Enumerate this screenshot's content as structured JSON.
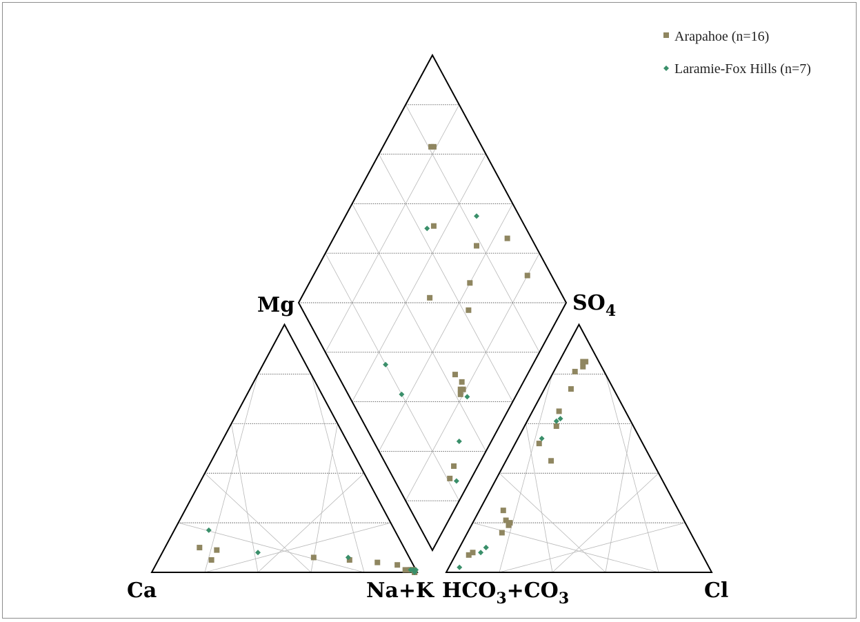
{
  "chart_data": {
    "type": "scatter",
    "subtype": "piper-diagram",
    "corner_labels": {
      "cation_left": "Ca",
      "cation_right": "Na+K",
      "anion_left_parts": [
        "HCO",
        "3",
        "+CO",
        "3"
      ],
      "anion_right": "Cl",
      "diamond_left": "Mg",
      "diamond_right_parts": [
        "SO",
        "4"
      ]
    },
    "grid": true,
    "grid_interval_percent": 20,
    "legend_placement": "top-right",
    "series": [
      {
        "name": "Arapahoe (n=16)",
        "marker": "square",
        "color": "#8f8660",
        "cation_points": [
          {
            "ca": 77,
            "na_k": 13,
            "mg": 10
          },
          {
            "ca": 71,
            "na_k": 20,
            "mg": 9
          },
          {
            "ca": 75,
            "na_k": 20,
            "mg": 5
          },
          {
            "ca": 36,
            "na_k": 58,
            "mg": 6
          },
          {
            "ca": 23,
            "na_k": 72,
            "mg": 5
          },
          {
            "ca": 13,
            "na_k": 83,
            "mg": 4
          },
          {
            "ca": 6,
            "na_k": 91,
            "mg": 3
          },
          {
            "ca": 4,
            "na_k": 95,
            "mg": 1
          },
          {
            "ca": 2,
            "na_k": 97,
            "mg": 1
          },
          {
            "ca": 1,
            "na_k": 98,
            "mg": 1
          },
          {
            "ca": 2,
            "na_k": 97,
            "mg": 1
          },
          {
            "ca": 1,
            "na_k": 98,
            "mg": 1
          },
          {
            "ca": 2,
            "na_k": 97,
            "mg": 1
          },
          {
            "ca": 1,
            "na_k": 99,
            "mg": 0
          },
          {
            "ca": 1,
            "na_k": 98,
            "mg": 1
          },
          {
            "ca": 1,
            "na_k": 99,
            "mg": 0
          }
        ],
        "anion_points": [
          {
            "hco3_co3": 5,
            "cl": 10,
            "so4": 85
          },
          {
            "hco3_co3": 6,
            "cl": 9,
            "so4": 85
          },
          {
            "hco3_co3": 7,
            "cl": 10,
            "so4": 83
          },
          {
            "hco3_co3": 11,
            "cl": 8,
            "so4": 81
          },
          {
            "hco3_co3": 16,
            "cl": 10,
            "so4": 74
          },
          {
            "hco3_co3": 25,
            "cl": 10,
            "so4": 65
          },
          {
            "hco3_co3": 29,
            "cl": 12,
            "so4": 59
          },
          {
            "hco3_co3": 39,
            "cl": 9,
            "so4": 52
          },
          {
            "hco3_co3": 38,
            "cl": 17,
            "so4": 45
          },
          {
            "hco3_co3": 66,
            "cl": 9,
            "so4": 25
          },
          {
            "hco3_co3": 66,
            "cl": 14,
            "so4": 20
          },
          {
            "hco3_co3": 67,
            "cl": 12,
            "so4": 21
          },
          {
            "hco3_co3": 67,
            "cl": 14,
            "so4": 19
          },
          {
            "hco3_co3": 71,
            "cl": 13,
            "so4": 16
          },
          {
            "hco3_co3": 86,
            "cl": 6,
            "so4": 8
          },
          {
            "hco3_co3": 88,
            "cl": 5,
            "so4": 7
          }
        ],
        "diamond_points": [
          {
            "ca_mg": 82,
            "so4_cl": 81
          },
          {
            "ca_mg": 81,
            "so4_cl": 82
          },
          {
            "ca_mg": 65,
            "so4_cl": 66
          },
          {
            "ca_mg": 35,
            "so4_cl": 91
          },
          {
            "ca_mg": 20,
            "so4_cl": 91
          },
          {
            "ca_mg": 52,
            "so4_cl": 50
          },
          {
            "ca_mg": 45,
            "so4_cl": 78
          },
          {
            "ca_mg": 35,
            "so4_cl": 62
          },
          {
            "ca_mg": 40,
            "so4_cl": 68
          },
          {
            "ca_mg": 27,
            "so4_cl": 44
          },
          {
            "ca_mg": 23,
            "so4_cl": 45
          },
          {
            "ca_mg": 22,
            "so4_cl": 43
          },
          {
            "ca_mg": 21,
            "so4_cl": 42
          },
          {
            "ca_mg": 21,
            "so4_cl": 44
          },
          {
            "ca_mg": 9,
            "so4_cl": 25
          },
          {
            "ca_mg": 8,
            "so4_cl": 21
          }
        ]
      },
      {
        "name": "Laramie-Fox Hills (n=7)",
        "marker": "diamond",
        "color": "#3a8f6a",
        "cation_points": [
          {
            "ca": 70,
            "na_k": 13,
            "mg": 17
          },
          {
            "ca": 56,
            "na_k": 36,
            "mg": 8
          },
          {
            "ca": 23,
            "na_k": 71,
            "mg": 6
          },
          {
            "ca": 2,
            "na_k": 97,
            "mg": 1
          },
          {
            "ca": 1,
            "na_k": 98,
            "mg": 1
          },
          {
            "ca": 1,
            "na_k": 99,
            "mg": 0
          },
          {
            "ca": 0,
            "na_k": 99,
            "mg": 1
          }
        ],
        "anion_points": [
          {
            "hco3_co3": 26,
            "cl": 12,
            "so4": 62
          },
          {
            "hco3_co3": 28,
            "cl": 11,
            "so4": 61
          },
          {
            "hco3_co3": 37,
            "cl": 9,
            "so4": 54
          },
          {
            "hco3_co3": 80,
            "cl": 10,
            "so4": 10
          },
          {
            "hco3_co3": 80,
            "cl": 10,
            "so4": 10
          },
          {
            "hco3_co3": 83,
            "cl": 9,
            "so4": 8
          },
          {
            "hco3_co3": 94,
            "cl": 4,
            "so4": 2
          }
        ],
        "diamond_points": [
          {
            "ca_mg": 55,
            "so4_cl": 20
          },
          {
            "ca_mg": 43,
            "so4_cl": 20
          },
          {
            "ca_mg": 67,
            "so4_cl": 63
          },
          {
            "ca_mg": 51,
            "so4_cl": 84
          },
          {
            "ca_mg": 18,
            "so4_cl": 44
          },
          {
            "ca_mg": 5,
            "so4_cl": 23
          },
          {
            "ca_mg": 12,
            "so4_cl": 32
          }
        ]
      }
    ]
  }
}
